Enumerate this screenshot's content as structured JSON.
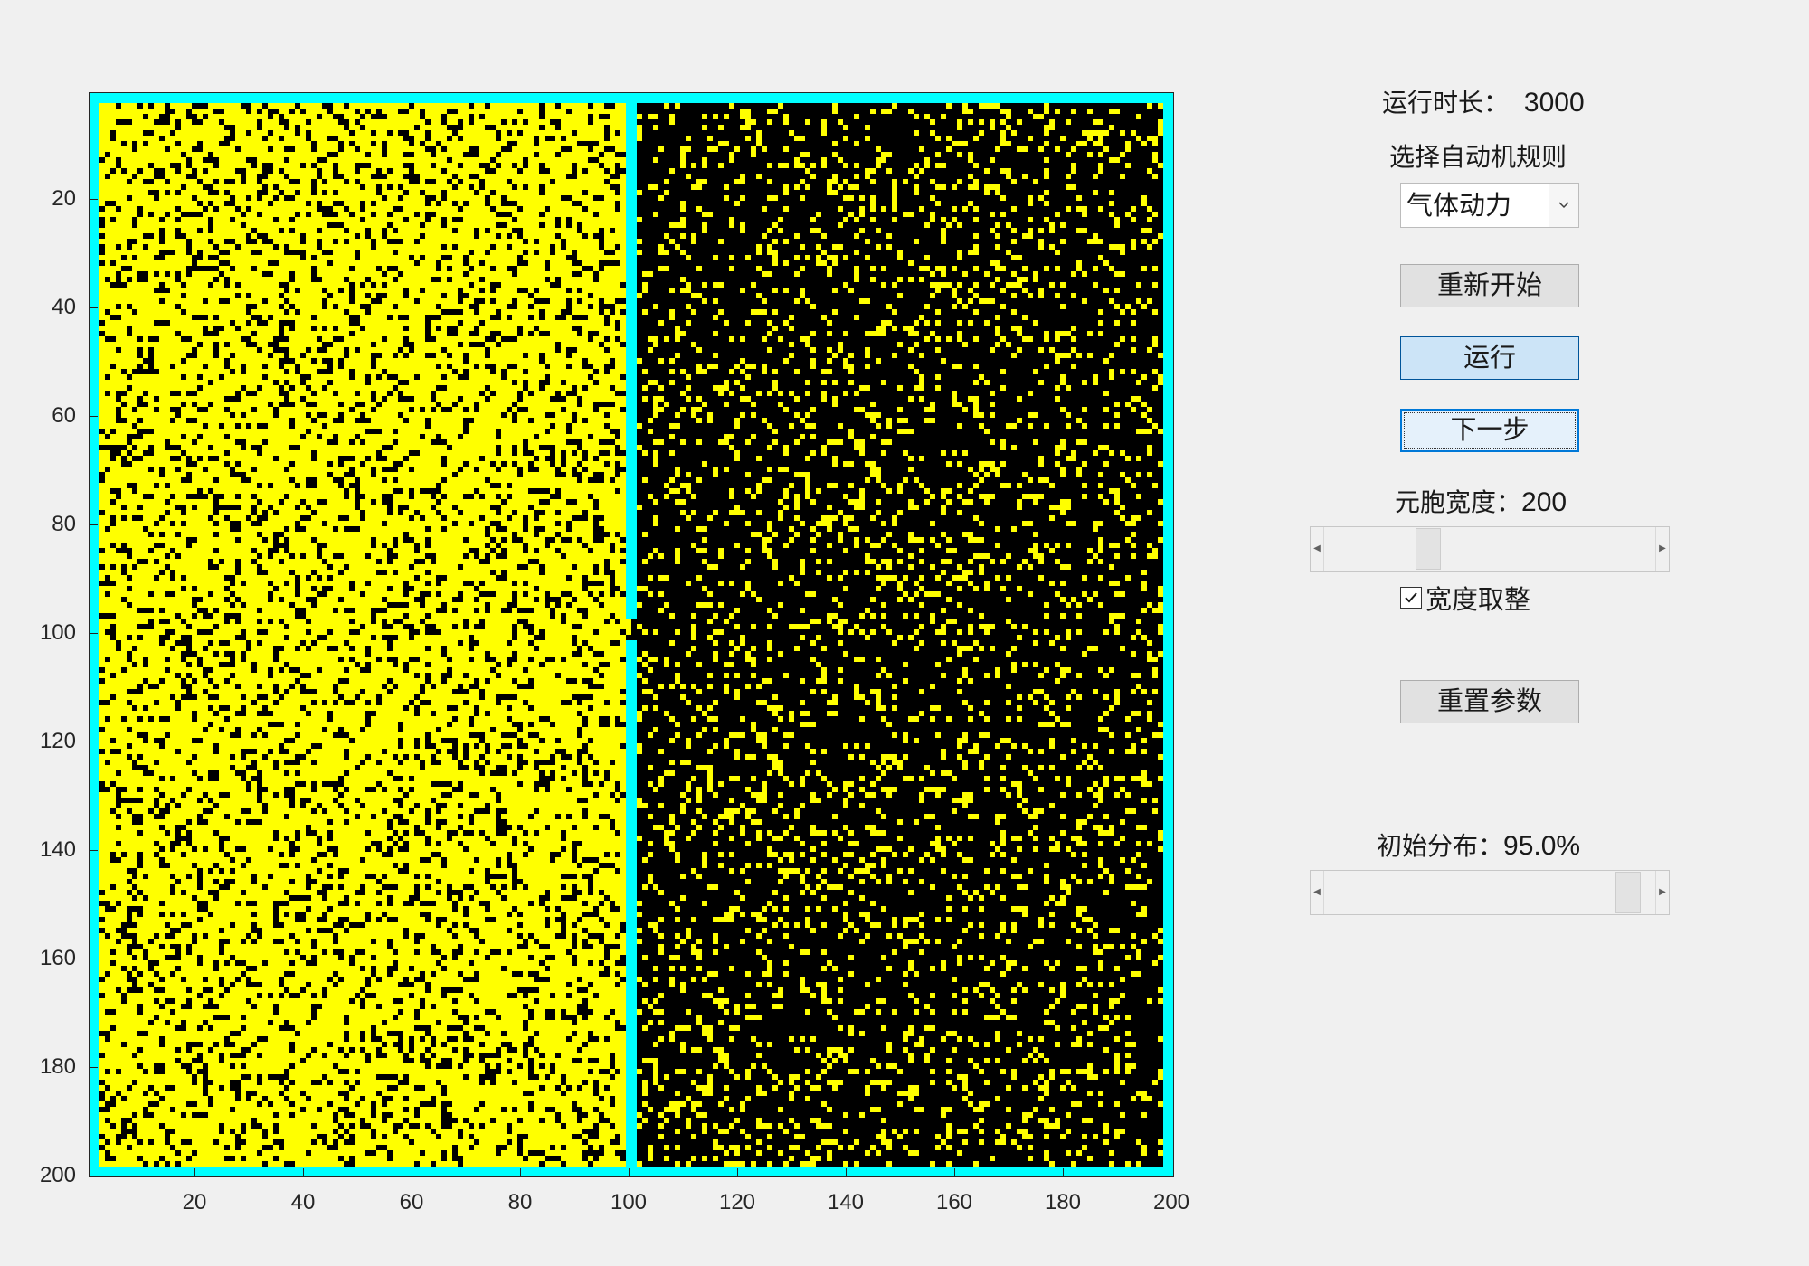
{
  "grid": {
    "rows": 200,
    "cols": 200,
    "left_region_fill": 0.78,
    "right_region_fill": 0.17,
    "colors": {
      "alive": "#ffff00",
      "dead": "#000000",
      "wall": "#00ffff"
    }
  },
  "axes": {
    "y_ticks": [
      "20",
      "40",
      "60",
      "80",
      "100",
      "120",
      "140",
      "160",
      "180",
      "200"
    ],
    "x_ticks": [
      "20",
      "40",
      "60",
      "80",
      "100",
      "120",
      "140",
      "160",
      "180",
      "200"
    ]
  },
  "controls": {
    "run_time_label": "运行时长：",
    "run_time_value": "3000",
    "rule_label": "选择自动机规则",
    "rule_selected": "气体动力",
    "restart_label": "重新开始",
    "run_label": "运行",
    "step_label": "下一步",
    "cell_width_label": "元胞宽度：",
    "cell_width_value": "200",
    "cell_width_slider_fraction": 0.3,
    "round_width_label": "宽度取整",
    "round_width_checked": true,
    "reset_params_label": "重置参数",
    "initial_dist_label": "初始分布：",
    "initial_dist_value": "95.0%",
    "initial_dist_slider_fraction": 0.95
  }
}
